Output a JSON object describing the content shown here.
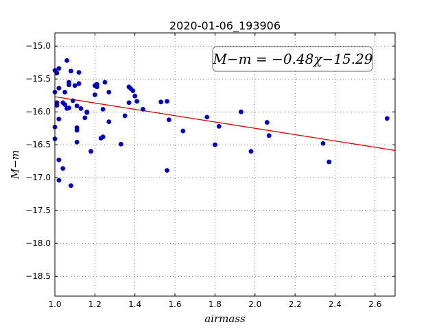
{
  "chart_data": {
    "type": "scatter",
    "title": "2020-01-06_193906",
    "xlabel": "airmass",
    "ylabel": "M−m",
    "xlim": [
      1.0,
      2.7
    ],
    "ylim": [
      -18.8,
      -14.8
    ],
    "y_inverted": true,
    "grid": true,
    "x_ticks": [
      1.0,
      1.2,
      1.4,
      1.6,
      1.8,
      2.0,
      2.2,
      2.4,
      2.6
    ],
    "x_tick_labels": [
      "1.0",
      "1.2",
      "1.4",
      "1.6",
      "1.8",
      "2.0",
      "2.2",
      "2.4",
      "2.6"
    ],
    "y_ticks": [
      -15.0,
      -15.5,
      -16.0,
      -16.5,
      -17.0,
      -17.5,
      -18.0,
      -18.5
    ],
    "y_tick_labels": [
      "−15.0",
      "−15.5",
      "−16.0",
      "−16.5",
      "−17.0",
      "−17.5",
      "−18.0",
      "−18.5"
    ],
    "fit_label": "M−m = −0.48χ−15.29",
    "fit": {
      "slope": -0.48,
      "intercept": -15.29,
      "color": "#dd0000"
    },
    "marker_color": "#0000cc",
    "points": [
      {
        "x": 1.0,
        "y": -15.37
      },
      {
        "x": 1.01,
        "y": -15.41
      },
      {
        "x": 1.0,
        "y": -15.7
      },
      {
        "x": 1.02,
        "y": -15.34
      },
      {
        "x": 1.02,
        "y": -15.64
      },
      {
        "x": 1.01,
        "y": -15.86
      },
      {
        "x": 1.01,
        "y": -15.9
      },
      {
        "x": 1.0,
        "y": -16.23
      },
      {
        "x": 1.0,
        "y": -16.41
      },
      {
        "x": 1.02,
        "y": -16.11
      },
      {
        "x": 1.02,
        "y": -16.73
      },
      {
        "x": 1.02,
        "y": -17.04
      },
      {
        "x": 1.04,
        "y": -16.86
      },
      {
        "x": 1.04,
        "y": -15.86
      },
      {
        "x": 1.05,
        "y": -15.89
      },
      {
        "x": 1.05,
        "y": -15.7
      },
      {
        "x": 1.06,
        "y": -15.95
      },
      {
        "x": 1.06,
        "y": -15.22
      },
      {
        "x": 1.07,
        "y": -15.55
      },
      {
        "x": 1.07,
        "y": -15.59
      },
      {
        "x": 1.07,
        "y": -15.94
      },
      {
        "x": 1.08,
        "y": -15.38
      },
      {
        "x": 1.08,
        "y": -17.12
      },
      {
        "x": 1.09,
        "y": -15.83
      },
      {
        "x": 1.1,
        "y": -15.6
      },
      {
        "x": 1.11,
        "y": -15.91
      },
      {
        "x": 1.11,
        "y": -16.24
      },
      {
        "x": 1.11,
        "y": -16.28
      },
      {
        "x": 1.11,
        "y": -16.46
      },
      {
        "x": 1.12,
        "y": -15.4
      },
      {
        "x": 1.12,
        "y": -15.57
      },
      {
        "x": 1.13,
        "y": -15.95
      },
      {
        "x": 1.15,
        "y": -16.09
      },
      {
        "x": 1.16,
        "y": -16.01
      },
      {
        "x": 1.16,
        "y": -16.0
      },
      {
        "x": 1.18,
        "y": -16.6
      },
      {
        "x": 1.2,
        "y": -15.74
      },
      {
        "x": 1.2,
        "y": -15.6
      },
      {
        "x": 1.21,
        "y": -15.58
      },
      {
        "x": 1.21,
        "y": -15.62
      },
      {
        "x": 1.23,
        "y": -16.4
      },
      {
        "x": 1.24,
        "y": -16.38
      },
      {
        "x": 1.24,
        "y": -15.96
      },
      {
        "x": 1.25,
        "y": -15.55
      },
      {
        "x": 1.27,
        "y": -15.7
      },
      {
        "x": 1.27,
        "y": -16.15
      },
      {
        "x": 1.33,
        "y": -16.49
      },
      {
        "x": 1.35,
        "y": -16.06
      },
      {
        "x": 1.37,
        "y": -15.62
      },
      {
        "x": 1.38,
        "y": -15.65
      },
      {
        "x": 1.37,
        "y": -15.86
      },
      {
        "x": 1.39,
        "y": -15.68
      },
      {
        "x": 1.4,
        "y": -15.76
      },
      {
        "x": 1.41,
        "y": -15.84
      },
      {
        "x": 1.44,
        "y": -15.96
      },
      {
        "x": 1.53,
        "y": -15.85
      },
      {
        "x": 1.56,
        "y": -15.84
      },
      {
        "x": 1.57,
        "y": -16.12
      },
      {
        "x": 1.56,
        "y": -16.89
      },
      {
        "x": 1.64,
        "y": -16.29
      },
      {
        "x": 1.76,
        "y": -16.08
      },
      {
        "x": 1.8,
        "y": -16.5
      },
      {
        "x": 1.82,
        "y": -16.22
      },
      {
        "x": 1.93,
        "y": -16.0
      },
      {
        "x": 1.98,
        "y": -16.6
      },
      {
        "x": 2.06,
        "y": -16.16
      },
      {
        "x": 2.07,
        "y": -16.36
      },
      {
        "x": 2.34,
        "y": -16.48
      },
      {
        "x": 2.37,
        "y": -16.76
      },
      {
        "x": 2.66,
        "y": -16.1
      }
    ]
  }
}
